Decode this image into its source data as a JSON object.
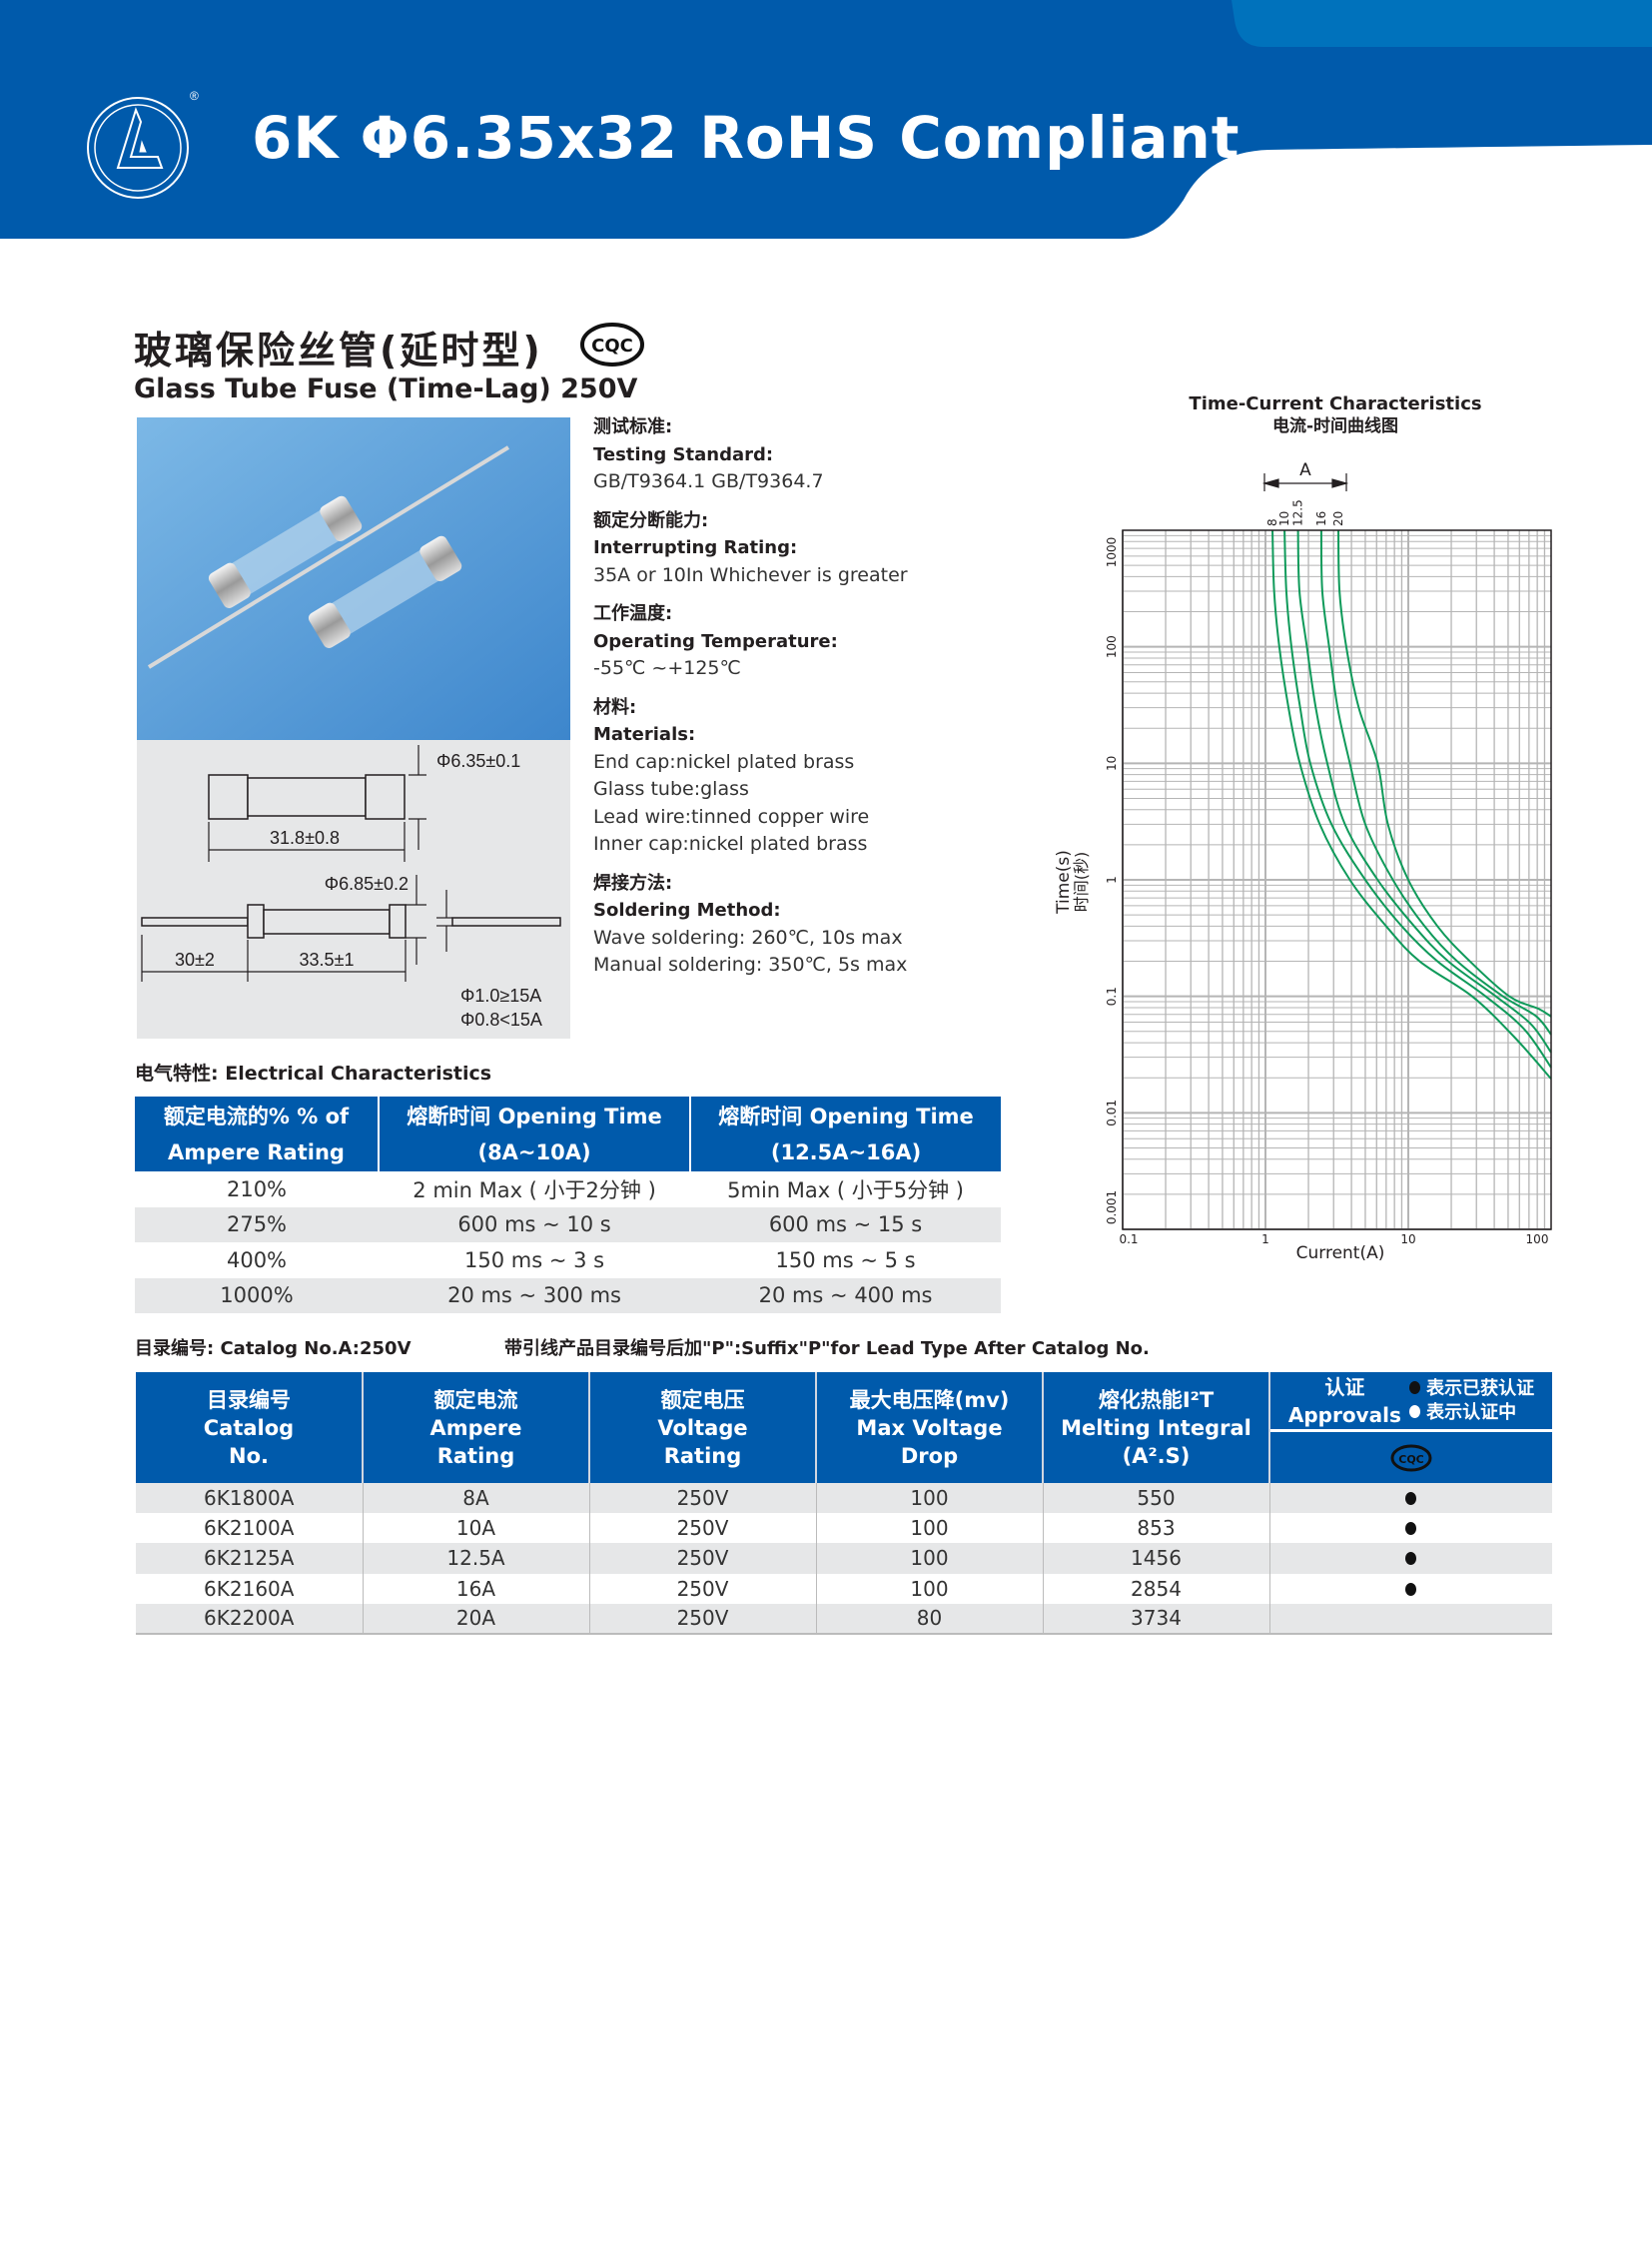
{
  "header": {
    "title": "6K Φ6.35x32 RoHS Compliant",
    "brand_color": "#005aab",
    "registered_mark": "®"
  },
  "product": {
    "title_cn": "玻璃保险丝管(延时型)",
    "title_en": "Glass Tube Fuse (Time-Lag) 250V",
    "cert_logo": "CQC"
  },
  "specs": [
    {
      "cn": "测试标准:",
      "en": "Testing Standard:",
      "values": [
        "GB/T9364.1  GB/T9364.7"
      ]
    },
    {
      "cn": "额定分断能力:",
      "en": "Interrupting  Rating:",
      "values": [
        "35A or 10In Whichever is greater"
      ]
    },
    {
      "cn": "工作温度:",
      "en": "Operating  Temperature:",
      "values": [
        "-55℃ ~+125℃"
      ]
    },
    {
      "cn": "材料:",
      "en": "Materials:",
      "values": [
        "End cap:nickel plated brass",
        "Glass tube:glass",
        "Lead wire:tinned copper wire",
        "Inner cap:nickel plated brass"
      ]
    },
    {
      "cn": "焊接方法:",
      "en": "Soldering Method:",
      "values": [
        "Wave soldering:    260℃, 10s max",
        "Manual soldering: 350℃, 5s   max"
      ]
    }
  ],
  "drawing": {
    "dia_body": "Φ6.35±0.1",
    "length_body": "31.8±0.8",
    "dia_cap": "Φ6.85±0.2",
    "lead_length": "30±2",
    "length_lead_type": "33.5±1",
    "wire_large": "Φ1.0≥15A",
    "wire_small": "Φ0.8<15A"
  },
  "electrical": {
    "label": "电气特性: Electrical Characteristics",
    "headers": [
      "额定电流的%  % of Ampere Rating",
      "熔断时间 Opening Time (8A~10A)",
      "熔断时间 Opening Time (12.5A~16A)"
    ],
    "header_lines": [
      [
        "额定电流的%  % of",
        "Ampere Rating"
      ],
      [
        "熔断时间 Opening Time",
        "(8A~10A)"
      ],
      [
        "熔断时间 Opening Time",
        "(12.5A~16A)"
      ]
    ],
    "rows": [
      [
        "210%",
        "2 min Max ( 小于2分钟 )",
        "5min Max ( 小于5分钟 )"
      ],
      [
        "275%",
        "600 ms ~ 10 s",
        "600 ms ~ 15 s"
      ],
      [
        "400%",
        "150 ms ~ 3 s",
        "150 ms ~ 5 s"
      ],
      [
        "1000%",
        "20 ms ~ 300 ms",
        "20 ms ~ 400 ms"
      ]
    ]
  },
  "catalog": {
    "label": "目录编号: Catalog No.A:250V",
    "suffix_note": "带引线产品目录编号后加\"P\":Suffix\"P\"for Lead Type After Catalog No.",
    "headers": [
      [
        "目录编号",
        "Catalog",
        "No."
      ],
      [
        "额定电流",
        "Ampere",
        "Rating"
      ],
      [
        "额定电压",
        "Voltage",
        "Rating"
      ],
      [
        "最大电压降(mv)",
        "Max Voltage",
        "Drop"
      ],
      [
        "熔化热能I²T",
        "Melting Integral",
        "(A².S)"
      ]
    ],
    "approvals": {
      "cn": "认证",
      "en": "Approvals",
      "legend_obtained": "表示已获认证",
      "legend_pending": "表示认证中",
      "cert": "CQC"
    },
    "rows": [
      {
        "no": "6K1800A",
        "amp": "8A",
        "volt": "250V",
        "drop": "100",
        "i2t": "550",
        "cqc": "obtained"
      },
      {
        "no": "6K2100A",
        "amp": "10A",
        "volt": "250V",
        "drop": "100",
        "i2t": "853",
        "cqc": "obtained"
      },
      {
        "no": "6K2125A",
        "amp": "12.5A",
        "volt": "250V",
        "drop": "100",
        "i2t": "1456",
        "cqc": "obtained"
      },
      {
        "no": "6K2160A",
        "amp": "16A",
        "volt": "250V",
        "drop": "100",
        "i2t": "2854",
        "cqc": "obtained"
      },
      {
        "no": "6K2200A",
        "amp": "20A",
        "volt": "250V",
        "drop": "80",
        "i2t": "3734",
        "cqc": ""
      }
    ]
  },
  "chart_data": {
    "type": "line",
    "title": "Time-Current Characteristics",
    "subtitle": "电流-时间曲线图",
    "xlabel": "Current(A)",
    "ylabel": "Time(s)",
    "ylabel_cn": "时间(秒)",
    "xscale": "log",
    "yscale": "log",
    "xlim": [
      0.1,
      100
    ],
    "ylim": [
      0.001,
      1000
    ],
    "xticks": [
      "0.1",
      "1",
      "10",
      "100"
    ],
    "yticks": [
      "0.001",
      "0.01",
      "0.1",
      "1",
      "10",
      "100",
      "1000"
    ],
    "grid": true,
    "series_group_label": "A",
    "line_color": "#0f9a5a",
    "series": [
      {
        "name": "8",
        "points": [
          [
            1.12,
            1000
          ],
          [
            1.15,
            300
          ],
          [
            1.25,
            100
          ],
          [
            1.45,
            30
          ],
          [
            1.74,
            10
          ],
          [
            2.4,
            3
          ],
          [
            3.9,
            1
          ],
          [
            7,
            0.4
          ],
          [
            12,
            0.2
          ],
          [
            28,
            0.1
          ],
          [
            55,
            0.045
          ],
          [
            100,
            0.0196
          ]
        ]
      },
      {
        "name": "10",
        "points": [
          [
            1.36,
            1000
          ],
          [
            1.4,
            300
          ],
          [
            1.52,
            100
          ],
          [
            1.75,
            30
          ],
          [
            2.06,
            10
          ],
          [
            2.9,
            3
          ],
          [
            5.0,
            1
          ],
          [
            9,
            0.4
          ],
          [
            16,
            0.2
          ],
          [
            34.8,
            0.1
          ],
          [
            65,
            0.052
          ],
          [
            100,
            0.0245
          ]
        ]
      },
      {
        "name": "12.5",
        "points": [
          [
            1.69,
            1000
          ],
          [
            1.73,
            300
          ],
          [
            1.95,
            100
          ],
          [
            2.25,
            30
          ],
          [
            2.71,
            10
          ],
          [
            3.6,
            3
          ],
          [
            6.1,
            1
          ],
          [
            11,
            0.4
          ],
          [
            19,
            0.2
          ],
          [
            41,
            0.1
          ],
          [
            72,
            0.058
          ],
          [
            100,
            0.033
          ]
        ]
      },
      {
        "name": "16",
        "points": [
          [
            2.46,
            1000
          ],
          [
            2.5,
            300
          ],
          [
            2.79,
            100
          ],
          [
            3.2,
            30
          ],
          [
            3.9,
            10
          ],
          [
            5.0,
            3
          ],
          [
            7.8,
            1
          ],
          [
            13,
            0.4
          ],
          [
            22,
            0.2
          ],
          [
            46,
            0.1
          ],
          [
            78,
            0.068
          ],
          [
            100,
            0.047
          ]
        ]
      },
      {
        "name": "20",
        "points": [
          [
            3.24,
            1000
          ],
          [
            3.3,
            300
          ],
          [
            3.68,
            100
          ],
          [
            4.5,
            30
          ],
          [
            6.1,
            10
          ],
          [
            7.2,
            3
          ],
          [
            10,
            1
          ],
          [
            16,
            0.4
          ],
          [
            27,
            0.2
          ],
          [
            51,
            0.1
          ],
          [
            82,
            0.078
          ],
          [
            100,
            0.067
          ]
        ]
      }
    ]
  }
}
